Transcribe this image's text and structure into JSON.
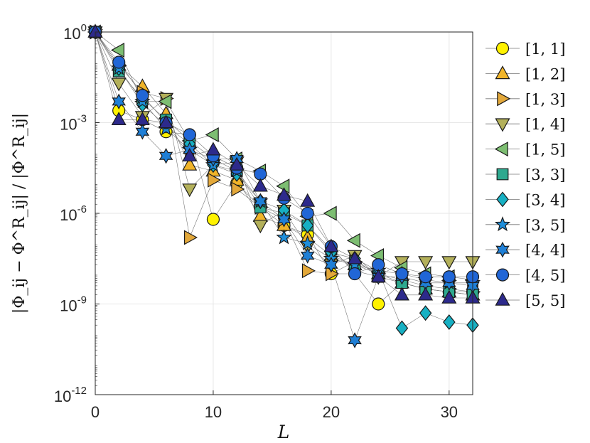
{
  "chart_data": {
    "type": "scatter",
    "title": "",
    "xlabel": "L",
    "ylabel": "|Φ_ij − Φ^R_ij| / |Φ^R_ij|",
    "xlim": [
      0,
      32
    ],
    "ylim_log10": [
      -12,
      0
    ],
    "yscale": "log",
    "grid": true,
    "legend_position": "outside-right",
    "x_ticks": [
      "0",
      "10",
      "20",
      "30"
    ],
    "y_ticks": [
      {
        "base": "10",
        "exp": "0"
      },
      {
        "base": "10",
        "exp": "-3"
      },
      {
        "base": "10",
        "exp": "-6"
      },
      {
        "base": "10",
        "exp": "-9"
      },
      {
        "base": "10",
        "exp": "-12"
      }
    ],
    "x": [
      0,
      2,
      4,
      6,
      8,
      10,
      12,
      14,
      16,
      18,
      20,
      22,
      24,
      26,
      28,
      30,
      32
    ],
    "series": [
      {
        "name": "[1, 1]",
        "marker": "circle",
        "color": "#FFF200",
        "log10_values": [
          0,
          -2.6,
          -2.9,
          -3.3,
          -3.4,
          -6.2,
          -5.0,
          -5.8,
          -6.4,
          -6.7,
          -8.0,
          -8.0,
          -9.0,
          -8.3,
          -8.5,
          -8.6,
          -8.6
        ]
      },
      {
        "name": "[1, 2]",
        "marker": "triangle-up",
        "color": "#F0B429",
        "log10_values": [
          0,
          -1.1,
          -1.8,
          -2.7,
          -4.4,
          -4.6,
          -4.9,
          -6.1,
          -6.4,
          -6.8,
          -7.4,
          -7.7,
          -8.0,
          -8.3,
          -8.5,
          -8.6,
          -8.7
        ]
      },
      {
        "name": "[1, 3]",
        "marker": "triangle-right",
        "color": "#E3A83A",
        "log10_values": [
          0,
          -1.1,
          -2.0,
          -2.2,
          -6.8,
          -4.9,
          -5.2,
          -5.8,
          -6.2,
          -7.9,
          -8.0,
          -7.6,
          -8.0,
          -8.2,
          -8.4,
          -8.5,
          -8.6
        ]
      },
      {
        "name": "[1, 4]",
        "marker": "triangle-down",
        "color": "#B3B05A",
        "log10_values": [
          0,
          -1.7,
          -2.8,
          -2.2,
          -5.2,
          -4.4,
          -4.3,
          -6.4,
          -5.9,
          -7.1,
          -7.7,
          -7.4,
          -8.1,
          -7.6,
          -7.6,
          -7.6,
          -7.6
        ]
      },
      {
        "name": "[1, 5]",
        "marker": "triangle-left",
        "color": "#7DBE72",
        "log10_values": [
          0,
          -0.6,
          -2.3,
          -2.3,
          -3.6,
          -3.4,
          -4.2,
          -4.6,
          -5.1,
          -6.1,
          -6.0,
          -6.9,
          -7.4,
          -7.8,
          -8.0,
          -8.1,
          -8.2
        ]
      },
      {
        "name": "[3, 3]",
        "marker": "square",
        "color": "#2EA98F",
        "log10_values": [
          0,
          -1.3,
          -2.2,
          -2.9,
          -3.6,
          -4.2,
          -4.6,
          -5.8,
          -6.0,
          -6.4,
          -7.2,
          -7.9,
          -8.1,
          -8.3,
          -8.5,
          -8.6,
          -8.7
        ]
      },
      {
        "name": "[3, 4]",
        "marker": "diamond",
        "color": "#17B0C3",
        "log10_values": [
          0,
          -1.2,
          -2.4,
          -3.1,
          -3.7,
          -4.4,
          -4.7,
          -5.6,
          -5.9,
          -6.4,
          -7.3,
          -7.5,
          -7.9,
          -9.8,
          -9.3,
          -9.6,
          -9.7
        ]
      },
      {
        "name": "[3, 5]",
        "marker": "star5",
        "color": "#1F8EDA",
        "log10_values": [
          0,
          -1.2,
          -2.3,
          -3.2,
          -3.9,
          -4.4,
          -4.6,
          -5.6,
          -6.8,
          -7.0,
          -7.5,
          -7.7,
          -7.9,
          -8.0,
          -8.2,
          -8.3,
          -8.3
        ]
      },
      {
        "name": "[4, 4]",
        "marker": "star6",
        "color": "#1F7FD6",
        "log10_values": [
          0,
          -2.3,
          -3.3,
          -4.1,
          -3.9,
          -4.2,
          -4.2,
          -5.6,
          -6.2,
          -7.4,
          -7.7,
          -10.2,
          -8.1,
          -8.1,
          -8.3,
          -8.3,
          -8.4
        ]
      },
      {
        "name": "[4, 5]",
        "marker": "circle",
        "color": "#2166D6",
        "log10_values": [
          0,
          -1.0,
          -2.1,
          -3.0,
          -3.4,
          -4.1,
          -4.5,
          -4.7,
          -5.5,
          -6.0,
          -7.1,
          -8.0,
          -7.7,
          -8.0,
          -8.1,
          -8.1,
          -8.1
        ]
      },
      {
        "name": "[5, 5]",
        "marker": "triangle-up",
        "color": "#2D2A8C",
        "log10_values": [
          0,
          -2.9,
          -2.9,
          -3.0,
          -4.1,
          -3.9,
          -4.4,
          -5.1,
          -5.4,
          -5.6,
          -7.1,
          -7.5,
          -8.1,
          -8.7,
          -8.7,
          -8.8,
          -8.8
        ]
      }
    ]
  }
}
